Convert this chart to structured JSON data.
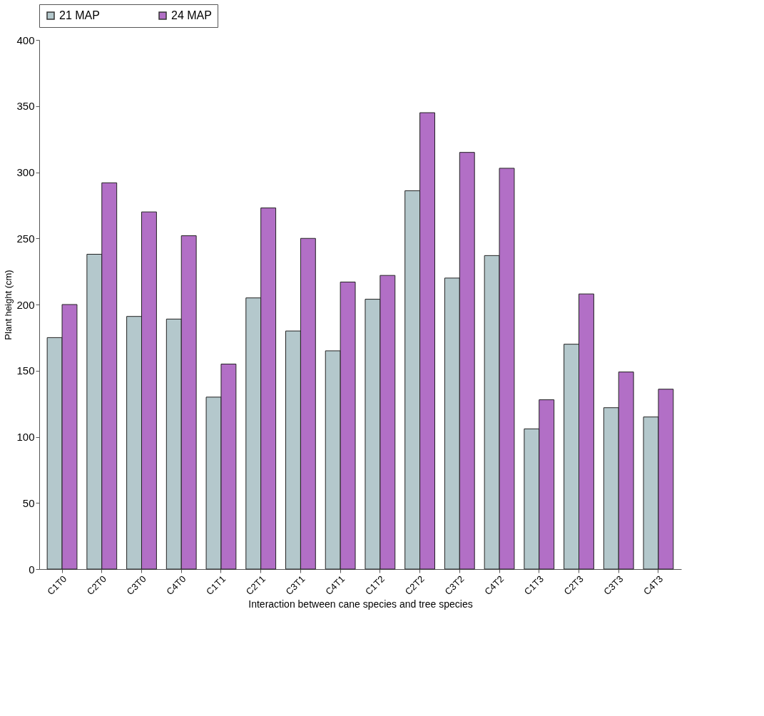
{
  "chart_data": {
    "type": "bar",
    "xlabel": "Interaction between cane species and tree species",
    "ylabel": "Plant height (cm)",
    "categories": [
      "C1T0",
      "C2T0",
      "C3T0",
      "C4T0",
      "C1T1",
      "C2T1",
      "C3T1",
      "C4T1",
      "C1T2",
      "C2T2",
      "C3T2",
      "C4T2",
      "C1T3",
      "C2T3",
      "C3T3",
      "C4T3"
    ],
    "series": [
      {
        "name": "21 MAP",
        "color": "#b4c8cc",
        "values": [
          175,
          238,
          191,
          189,
          130,
          205,
          180,
          165,
          204,
          286,
          220,
          237,
          106,
          170,
          122,
          115
        ]
      },
      {
        "name": "24 MAP",
        "color": "#b26fc6",
        "values": [
          200,
          292,
          270,
          252,
          155,
          273,
          250,
          217,
          222,
          345,
          315,
          303,
          128,
          208,
          149,
          136
        ]
      }
    ],
    "ylim": [
      0,
      400
    ],
    "yticks": [
      0,
      50,
      100,
      150,
      200,
      250,
      300,
      350,
      400
    ],
    "grid": false,
    "legend": "top"
  }
}
